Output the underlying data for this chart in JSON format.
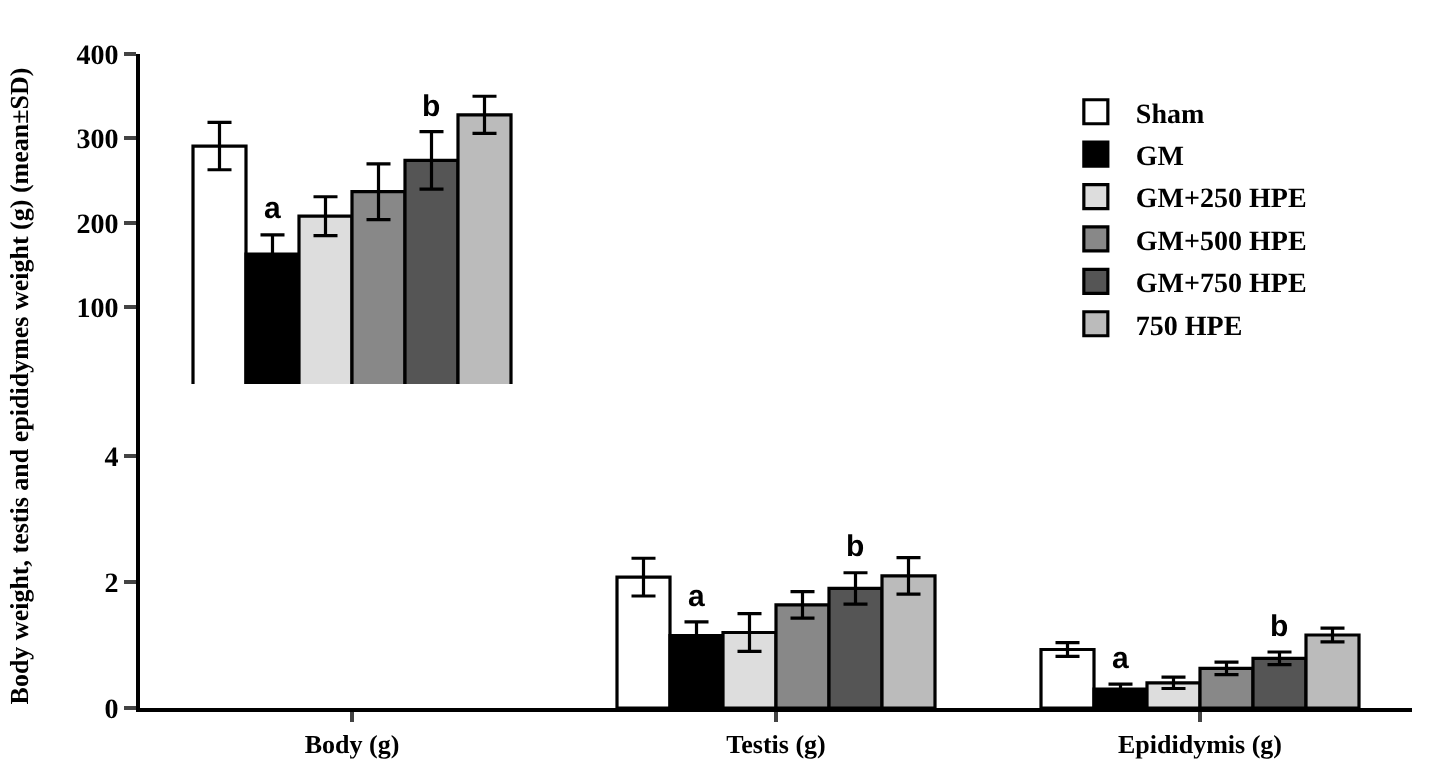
{
  "chart_data": [
    {
      "type": "bar",
      "ylabel": "Body weight, testis and epididymes weight (g) (mean±SD)",
      "categories": [
        "Body (g)",
        "Testis (g)",
        "Epididymis (g)"
      ],
      "ylim": [
        7,
        400
      ],
      "yticks": [
        100,
        200,
        300,
        400
      ],
      "tick_labels": "y",
      "legend": "top right",
      "grid": false,
      "series": [
        {
          "name": "Sham",
          "color": "#ffffff",
          "values": [
            291,
            null,
            null
          ],
          "errors": [
            28,
            null,
            null
          ]
        },
        {
          "name": "GM",
          "color": "#000000",
          "values": [
            163,
            null,
            null
          ],
          "errors": [
            23,
            null,
            null
          ]
        },
        {
          "name": "GM+250 HPE",
          "color": "#dddddd",
          "values": [
            208,
            null,
            null
          ],
          "errors": [
            23,
            null,
            null
          ]
        },
        {
          "name": "GM+500 HPE",
          "color": "#888888",
          "values": [
            237,
            null,
            null
          ],
          "errors": [
            33,
            null,
            null
          ]
        },
        {
          "name": "GM+750 HPE",
          "color": "#555555",
          "values": [
            274,
            null,
            null
          ],
          "errors": [
            34,
            null,
            null
          ]
        },
        {
          "name": "750 HPE",
          "color": "#bbbbbb",
          "values": [
            328,
            null,
            null
          ],
          "errors": [
            22,
            null,
            null
          ]
        }
      ],
      "annotations": [
        {
          "text": "a",
          "x": "Body (g)",
          "y": 186
        },
        "b"
      ]
    },
    {
      "type": "bar",
      "categories": [
        "Body (g)",
        "Testis (g)",
        "Epididymis (g)"
      ],
      "ylim": [
        0,
        5.15
      ],
      "yticks": [
        0,
        2,
        4
      ],
      "grid": false,
      "series": [
        {
          "color": "#ffffff",
          "values": [
            null,
            2.08,
            0.93
          ],
          "errors": [
            null,
            0.3,
            0.11
          ]
        },
        {
          "color": "#000000",
          "values": [
            null,
            1.15,
            0.3
          ],
          "errors": [
            null,
            0.22,
            0.08
          ]
        },
        {
          "color": "#dddddd",
          "values": [
            null,
            1.2,
            0.4
          ],
          "errors": [
            null,
            0.3,
            0.09
          ]
        },
        {
          "color": "#888888",
          "values": [
            null,
            1.64,
            0.63
          ],
          "errors": [
            null,
            0.21,
            0.1
          ]
        },
        {
          "color": "#555555",
          "values": [
            null,
            1.9,
            0.79
          ],
          "errors": [
            null,
            0.25,
            0.1
          ]
        },
        {
          "color": "#bbbbbb",
          "values": [
            null,
            2.1,
            1.16
          ],
          "errors": [
            null,
            0.29,
            0.11
          ]
        }
      ],
      "annotations": [
        {
          "text": "a",
          "x": "Testis (g)",
          "y": 1.37
        },
        "b",
        {
          "text": "a",
          "x": "Epididymis (g)",
          "y": 0.38
        },
        "b"
      ]
    }
  ]
}
